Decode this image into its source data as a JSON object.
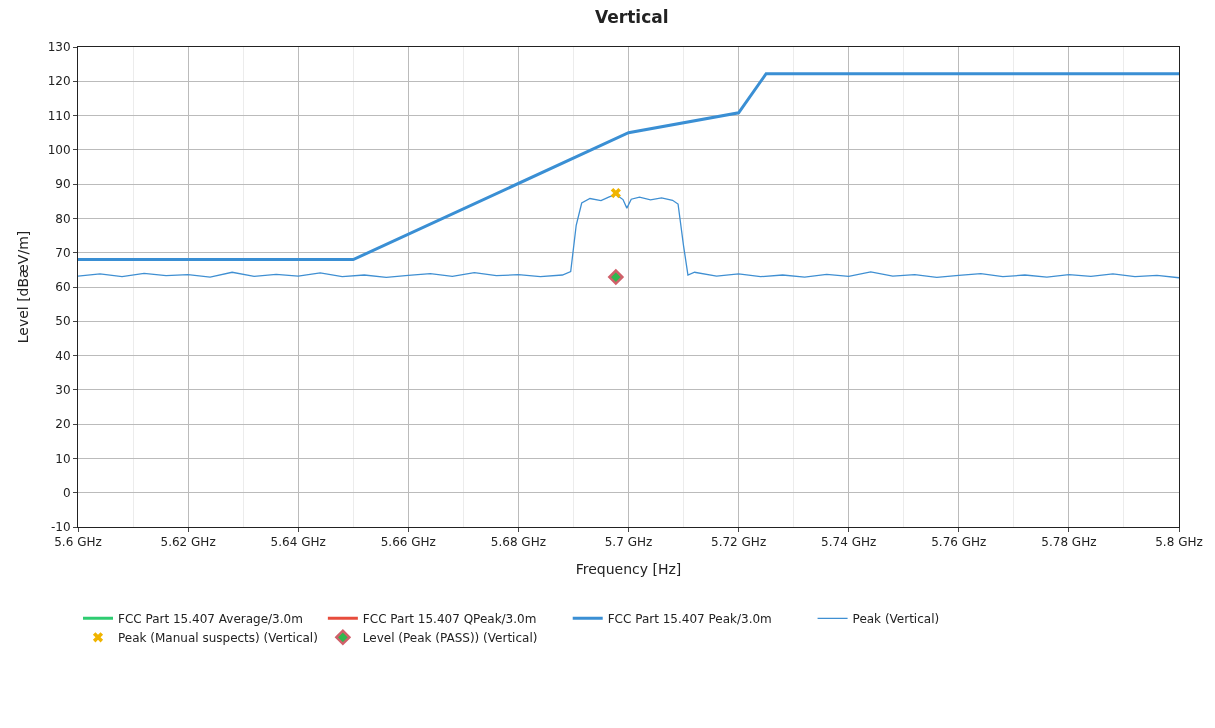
{
  "chart_data": {
    "type": "line",
    "title": "Vertical",
    "xlabel": "Frequency [Hz]",
    "ylabel": "Level [dBæV/m]",
    "xlim": [
      5.6,
      5.8
    ],
    "xticks": [
      {
        "value": 5.6,
        "label": "5.6 GHz"
      },
      {
        "value": 5.62,
        "label": "5.62 GHz"
      },
      {
        "value": 5.64,
        "label": "5.64 GHz"
      },
      {
        "value": 5.66,
        "label": "5.66 GHz"
      },
      {
        "value": 5.68,
        "label": "5.68 GHz"
      },
      {
        "value": 5.7,
        "label": "5.7 GHz"
      },
      {
        "value": 5.72,
        "label": "5.72 GHz"
      },
      {
        "value": 5.74,
        "label": "5.74 GHz"
      },
      {
        "value": 5.76,
        "label": "5.76 GHz"
      },
      {
        "value": 5.78,
        "label": "5.78 GHz"
      },
      {
        "value": 5.8,
        "label": "5.8 GHz"
      }
    ],
    "ylim": [
      -10,
      130
    ],
    "yticks": [
      -10,
      0,
      10,
      20,
      30,
      40,
      50,
      60,
      70,
      80,
      90,
      100,
      110,
      120,
      130
    ],
    "grid": true,
    "legend": "bottom",
    "series": [
      {
        "name": "FCC Part 15.407 Average/3.0m",
        "color": "#2ecc71"
      },
      {
        "name": "FCC Part 15.407 QPeak/3.0m",
        "color": "#e74c3c"
      },
      {
        "name": "FCC Part 15.407 Peak/3.0m",
        "color": "#3a8fd4",
        "x": [
          5.6,
          5.65,
          5.7,
          5.72,
          5.725,
          5.8
        ],
        "values": [
          68,
          68,
          105,
          110.8,
          122.2,
          122.2
        ]
      },
      {
        "name": "Peak (Vertical)",
        "color": "#3f8fd2",
        "x": [
          5.6,
          5.604,
          5.608,
          5.612,
          5.616,
          5.62,
          5.624,
          5.628,
          5.632,
          5.636,
          5.64,
          5.644,
          5.648,
          5.652,
          5.656,
          5.66,
          5.664,
          5.668,
          5.672,
          5.676,
          5.68,
          5.684,
          5.688,
          5.6895,
          5.6905,
          5.6915,
          5.693,
          5.695,
          5.6965,
          5.6977,
          5.699,
          5.6997,
          5.7005,
          5.702,
          5.704,
          5.706,
          5.708,
          5.709,
          5.71,
          5.7108,
          5.712,
          5.716,
          5.72,
          5.724,
          5.728,
          5.732,
          5.736,
          5.74,
          5.744,
          5.748,
          5.752,
          5.756,
          5.76,
          5.764,
          5.768,
          5.772,
          5.776,
          5.78,
          5.784,
          5.788,
          5.792,
          5.796,
          5.8
        ],
        "values": [
          63.2,
          63.8,
          63.0,
          64.0,
          63.3,
          63.6,
          62.9,
          64.3,
          63.1,
          63.7,
          63.2,
          64.1,
          63.0,
          63.5,
          62.8,
          63.4,
          63.9,
          63.1,
          64.2,
          63.3,
          63.6,
          63.0,
          63.5,
          64.5,
          78,
          84.5,
          85.8,
          85.2,
          86.3,
          87.0,
          85.5,
          83.0,
          85.6,
          86.2,
          85.4,
          86.0,
          85.3,
          84.2,
          72,
          63.5,
          64.3,
          63.2,
          63.8,
          63.0,
          63.5,
          62.9,
          63.7,
          63.1,
          64.4,
          63.2,
          63.6,
          62.8,
          63.4,
          63.9,
          63.0,
          63.5,
          62.9,
          63.6,
          63.1,
          63.8,
          63.0,
          63.4,
          62.7
        ]
      },
      {
        "name": "Peak (Manual suspects) (Vertical)",
        "type": "scatter",
        "marker": "cross",
        "color": "#f0b400",
        "x": [
          5.6977
        ],
        "values": [
          87.4
        ]
      },
      {
        "name": "Level (Peak (PASS)) (Vertical)",
        "type": "scatter",
        "marker": "diamond",
        "color": "#2fb84f",
        "x": [
          5.6977
        ],
        "values": [
          62.9
        ]
      }
    ]
  }
}
